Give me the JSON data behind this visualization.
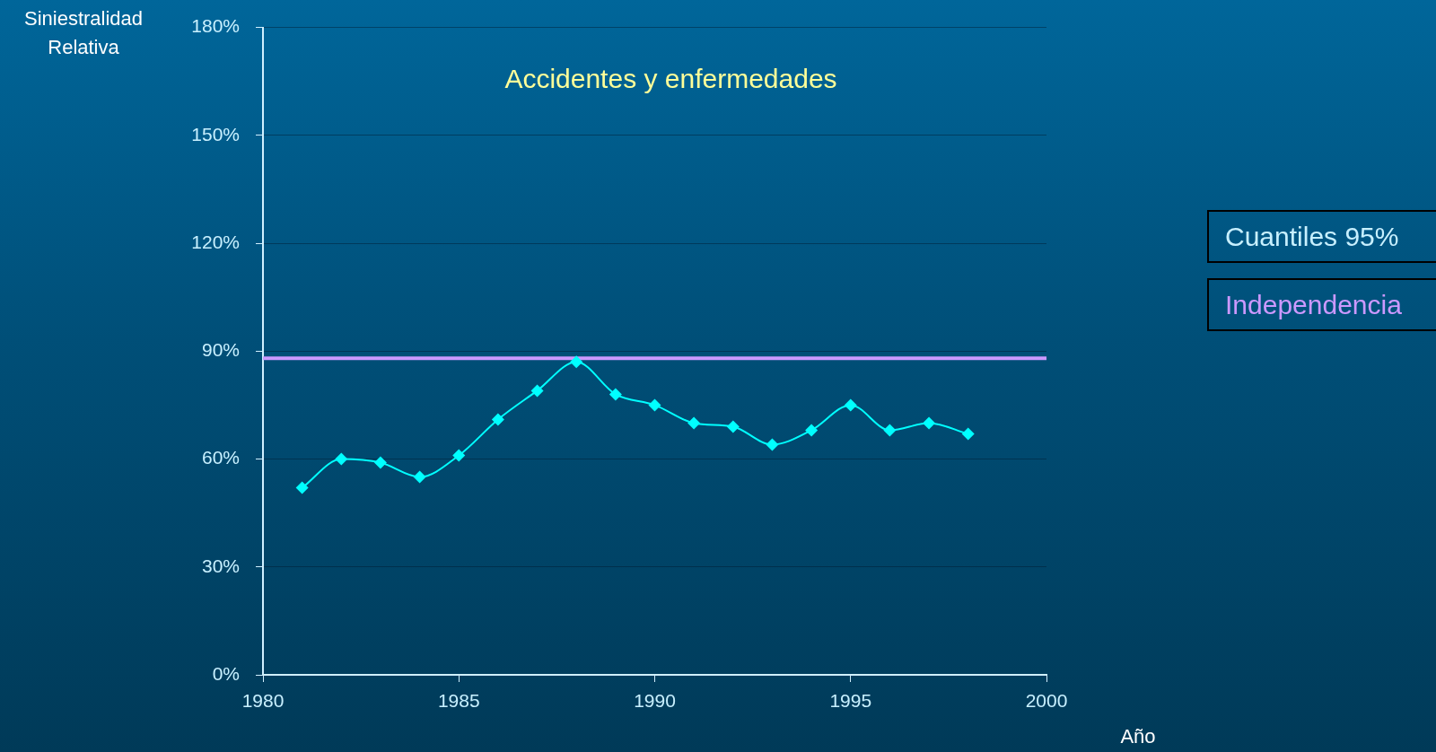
{
  "chart_data": {
    "type": "line",
    "title": "Accidentes y enfermedades",
    "xlabel": "Año",
    "ylabel": "Siniestralidad Relativa",
    "x": [
      1981,
      1982,
      1983,
      1984,
      1985,
      1986,
      1987,
      1988,
      1989,
      1990,
      1991,
      1992,
      1993,
      1994,
      1995,
      1996,
      1997,
      1998
    ],
    "series": [
      {
        "color": "#00ffff",
        "values": [
          52,
          60,
          59,
          55,
          61,
          71,
          79,
          87,
          78,
          75,
          70,
          69,
          64,
          68,
          75,
          68,
          70,
          67
        ]
      }
    ],
    "xlim": [
      1980,
      2000
    ],
    "xticks": [
      1980,
      1985,
      1990,
      1995,
      2000
    ],
    "ylim": [
      0,
      180
    ],
    "yticks": [
      {
        "value": 0,
        "label": "0%"
      },
      {
        "value": 30,
        "label": "30%"
      },
      {
        "value": 60,
        "label": "60%"
      },
      {
        "value": 90,
        "label": "90%"
      },
      {
        "value": 120,
        "label": "120%"
      },
      {
        "value": 150,
        "label": "150%"
      },
      {
        "value": 180,
        "label": "180%"
      }
    ],
    "grid": "y",
    "marker": "diamond",
    "ref_lines": [
      {
        "axis": "y",
        "value": 88,
        "label": "Independencia",
        "color": "#cc99ff"
      }
    ],
    "annotations": [
      "Cuantiles 95%"
    ]
  }
}
